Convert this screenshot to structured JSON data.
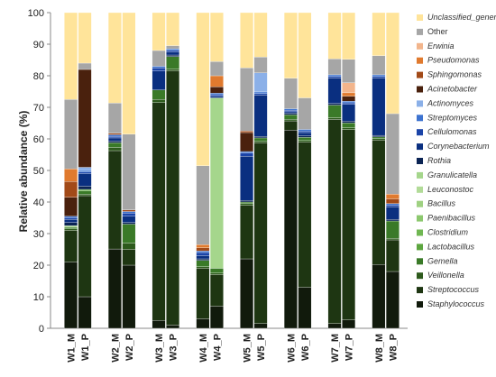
{
  "chart_data": {
    "type": "bar",
    "stacked": true,
    "title": "",
    "xlabel": "",
    "ylabel": "Relative abundance (%)",
    "ylim": [
      0,
      100
    ],
    "yticks": [
      0,
      10,
      20,
      30,
      40,
      50,
      60,
      70,
      80,
      90,
      100
    ],
    "legend_position": "right",
    "categories": [
      "W1_M",
      "W1_P",
      "W2_M",
      "W2_P",
      "W3_M",
      "W3_P",
      "W4_M",
      "W4_P",
      "W5_M",
      "W5_P",
      "W6_M",
      "W6_P",
      "W7_M",
      "W7_P",
      "W8_M",
      "W8_P"
    ],
    "series": [
      {
        "name": "Staphylococcus",
        "color": "#111a0c",
        "values": [
          21,
          10,
          25,
          20,
          2.5,
          1,
          3,
          7,
          22,
          1.5,
          65,
          13,
          1.5,
          2.5,
          20,
          18
        ]
      },
      {
        "name": "Streptococcus",
        "color": "#1e3612",
        "values": [
          10,
          32,
          31,
          5,
          69,
          81,
          16,
          10,
          17,
          57,
          3,
          46,
          64,
          57,
          39,
          10
        ]
      },
      {
        "name": "Veillonella",
        "color": "#2d5a1c",
        "values": [
          0.5,
          0.5,
          1,
          2,
          1,
          0.5,
          0.5,
          0.5,
          0.5,
          0.5,
          0.5,
          0.5,
          0.5,
          0.5,
          0.5,
          0.5
        ]
      },
      {
        "name": "Gemella",
        "color": "#3a7a28",
        "values": [
          0.5,
          1,
          1.5,
          6,
          3,
          4,
          2,
          1.5,
          0.5,
          1,
          1.5,
          1,
          4,
          1.5,
          0.5,
          5.5
        ]
      },
      {
        "name": "Lactobacillus",
        "color": "#5da640",
        "values": [
          0,
          0.5,
          0,
          0,
          0,
          0,
          0,
          0,
          0,
          0,
          0,
          0,
          0,
          0,
          0,
          0
        ]
      },
      {
        "name": "Clostridium",
        "color": "#70b752",
        "values": [
          0,
          0,
          0,
          0,
          0,
          0,
          0,
          0,
          0,
          0,
          0,
          0,
          0,
          0,
          0,
          0
        ]
      },
      {
        "name": "Paenibacillus",
        "color": "#8cc86e",
        "values": [
          0,
          0,
          0,
          0,
          0,
          0,
          0,
          0,
          0,
          0,
          0,
          0,
          0,
          0,
          0,
          0
        ]
      },
      {
        "name": "Bacillus",
        "color": "#9fd182",
        "values": [
          0,
          0,
          0,
          0,
          0,
          0,
          0,
          0,
          0,
          0,
          0,
          0,
          0,
          0,
          0,
          0
        ]
      },
      {
        "name": "Leuconostoc",
        "color": "#b2db98",
        "values": [
          0,
          0,
          0,
          0,
          0,
          0,
          0,
          0,
          0,
          0,
          0,
          0,
          0,
          0,
          0,
          0
        ]
      },
      {
        "name": "Granulicatella",
        "color": "#a5d68c",
        "values": [
          0.5,
          0,
          0,
          0,
          0,
          0,
          0,
          54,
          0,
          0,
          0,
          0,
          0,
          0,
          0,
          0
        ]
      },
      {
        "name": "Rothia",
        "color": "#0b2454",
        "values": [
          1,
          1,
          0.5,
          0.5,
          0,
          0.5,
          0.5,
          0,
          0.5,
          0.5,
          0.5,
          0.5,
          0.5,
          0.5,
          0.5,
          0.5
        ]
      },
      {
        "name": "Corynebacterium",
        "color": "#0a2f80",
        "values": [
          1,
          4,
          1,
          2,
          6,
          1,
          1,
          0.5,
          14,
          13,
          0.5,
          1,
          8,
          5,
          18,
          4
        ]
      },
      {
        "name": "Cellulomonas",
        "color": "#1b44a8",
        "values": [
          0.5,
          0.5,
          0.5,
          1,
          1,
          0.5,
          1,
          0.5,
          1,
          0.5,
          0.5,
          0.5,
          0.5,
          0.5,
          0.5,
          0.5
        ]
      },
      {
        "name": "Streptomyces",
        "color": "#3d73d0",
        "values": [
          0.5,
          0.5,
          0.5,
          0.5,
          0.5,
          0.5,
          0.5,
          0.5,
          0.5,
          0.5,
          0.5,
          0.5,
          0.5,
          0.5,
          0.5,
          0.5
        ]
      },
      {
        "name": "Actinomyces",
        "color": "#8bb0e8",
        "values": [
          0,
          1,
          0,
          0,
          0,
          0,
          0,
          0,
          0,
          6,
          0,
          0,
          0,
          0,
          0,
          0
        ]
      },
      {
        "name": "Acinetobacter",
        "color": "#4a210d",
        "values": [
          6,
          31,
          0,
          0,
          0,
          0,
          0,
          2,
          6,
          0,
          0,
          0,
          0,
          1.5,
          0,
          0
        ]
      },
      {
        "name": "Sphingomonas",
        "color": "#a24a18",
        "values": [
          5,
          0,
          0.5,
          0.5,
          0,
          0,
          1,
          0,
          0.5,
          0,
          0,
          0,
          0,
          0,
          0,
          1.5
        ]
      },
      {
        "name": "Pseudomonas",
        "color": "#e07a2e",
        "values": [
          4,
          0,
          0,
          0,
          0,
          0,
          1,
          3.5,
          0,
          0,
          0,
          0,
          0,
          1,
          0,
          1.5
        ]
      },
      {
        "name": "Erwinia",
        "color": "#f2b58c",
        "values": [
          0,
          0,
          0,
          0,
          0,
          0,
          0,
          0,
          0,
          0,
          0,
          0,
          0,
          3,
          0,
          0
        ]
      },
      {
        "name": "Other",
        "color": "#a6a6a6",
        "values": [
          22,
          2,
          9.5,
          24,
          5,
          1,
          25,
          4.5,
          20,
          5,
          10,
          10,
          5,
          7,
          6,
          25.5
        ]
      },
      {
        "name": "Unclassified_genera",
        "color": "#ffe49a",
        "values": [
          27.5,
          16,
          28.5,
          38.5,
          12,
          10.5,
          48.5,
          15.5,
          17.5,
          14,
          21.5,
          27,
          14.5,
          14,
          13.5,
          32
        ]
      }
    ]
  }
}
